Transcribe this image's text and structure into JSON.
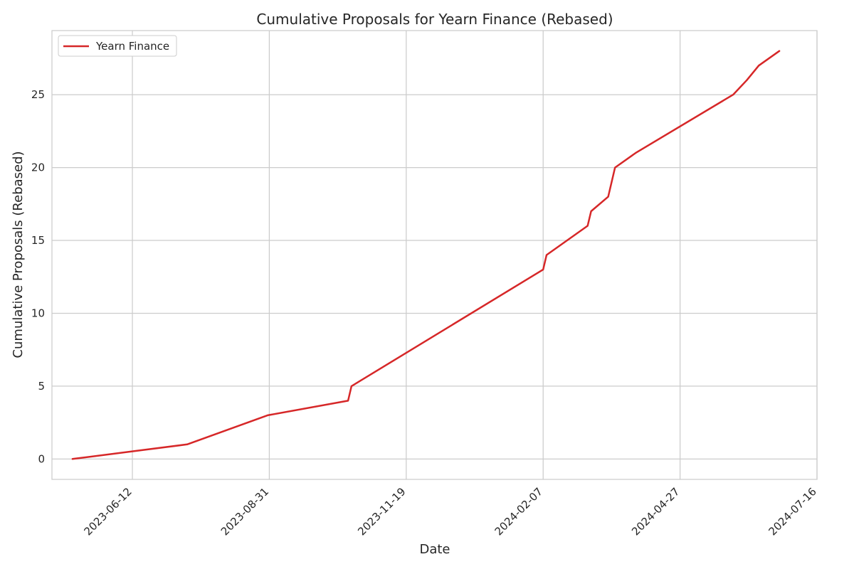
{
  "chart_data": {
    "type": "line",
    "title": "Cumulative Proposals for Yearn Finance (Rebased)",
    "xlabel": "Date",
    "ylabel": "Cumulative Proposals (Rebased)",
    "xlim": [
      "2023-04-26",
      "2024-07-16"
    ],
    "ylim": [
      -1.4,
      29.4
    ],
    "yticks": [
      0,
      5,
      10,
      15,
      20,
      25
    ],
    "xticks": [
      "2023-06-12",
      "2023-08-31",
      "2023-11-19",
      "2024-02-07",
      "2024-04-27",
      "2024-07-16"
    ],
    "grid": true,
    "legend_position": "top-left",
    "series": [
      {
        "name": "Yearn Finance",
        "color": "#d62728",
        "points": [
          {
            "x": "2023-05-08",
            "y": 0
          },
          {
            "x": "2023-07-14",
            "y": 1
          },
          {
            "x": "2023-08-30",
            "y": 3
          },
          {
            "x": "2023-10-16",
            "y": 4
          },
          {
            "x": "2023-10-18",
            "y": 5
          },
          {
            "x": "2024-02-07",
            "y": 13
          },
          {
            "x": "2024-02-09",
            "y": 14
          },
          {
            "x": "2024-03-04",
            "y": 16
          },
          {
            "x": "2024-03-06",
            "y": 17
          },
          {
            "x": "2024-03-16",
            "y": 18
          },
          {
            "x": "2024-03-20",
            "y": 20
          },
          {
            "x": "2024-04-01",
            "y": 21
          },
          {
            "x": "2024-05-28",
            "y": 25
          },
          {
            "x": "2024-06-05",
            "y": 26
          },
          {
            "x": "2024-06-12",
            "y": 27
          },
          {
            "x": "2024-06-24",
            "y": 28
          }
        ]
      }
    ]
  }
}
